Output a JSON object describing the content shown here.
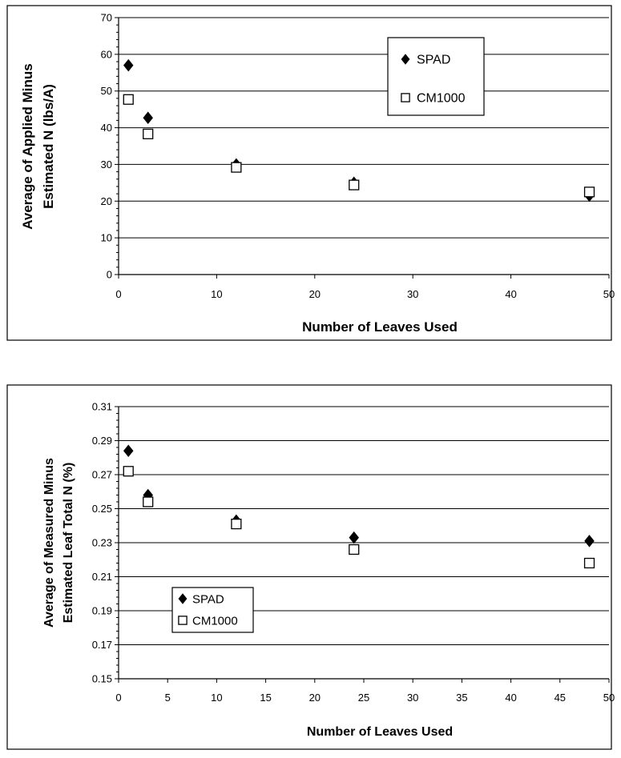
{
  "chart_data": [
    {
      "type": "scatter",
      "title": "",
      "xlabel": "Number of Leaves Used",
      "ylabel_lines": [
        "Average of Applied Minus",
        "Estimated N  (lbs/A)"
      ],
      "xlim": [
        0,
        50
      ],
      "ylim": [
        0,
        70
      ],
      "xticks": [
        0,
        10,
        20,
        30,
        40,
        50
      ],
      "yticks": [
        0,
        10,
        20,
        30,
        40,
        50,
        60,
        70
      ],
      "ytick_decimals": 0,
      "grid": "horizontal",
      "legend_position": "upper-right",
      "series": [
        {
          "name": "SPAD",
          "marker": "filled-diamond",
          "color": "#000000",
          "x": [
            1,
            3,
            12,
            24,
            48
          ],
          "y": [
            57,
            42.7,
            30,
            25,
            21.5
          ]
        },
        {
          "name": "CM1000",
          "marker": "open-square",
          "color": "#000000",
          "x": [
            1,
            3,
            12,
            24,
            48
          ],
          "y": [
            47.7,
            38.3,
            29.2,
            24.4,
            22.5
          ]
        }
      ]
    },
    {
      "type": "scatter",
      "title": "",
      "xlabel": "Number of Leaves Used",
      "ylabel_lines": [
        "Average of Measured Minus",
        "Estimated Leaf Total N (%)"
      ],
      "xlim": [
        0,
        50
      ],
      "ylim": [
        0.15,
        0.31
      ],
      "xticks": [
        0,
        5,
        10,
        15,
        20,
        25,
        30,
        35,
        40,
        45,
        50
      ],
      "yticks": [
        0.15,
        0.17,
        0.19,
        0.21,
        0.23,
        0.25,
        0.27,
        0.29,
        0.31
      ],
      "ytick_decimals": 2,
      "grid": "horizontal",
      "legend_position": "lower-left",
      "series": [
        {
          "name": "SPAD",
          "marker": "filled-diamond",
          "color": "#000000",
          "x": [
            1,
            3,
            12,
            24,
            48
          ],
          "y": [
            0.284,
            0.258,
            0.243,
            0.233,
            0.231
          ]
        },
        {
          "name": "CM1000",
          "marker": "open-square",
          "color": "#000000",
          "x": [
            1,
            3,
            12,
            24,
            48
          ],
          "y": [
            0.272,
            0.254,
            0.241,
            0.226,
            0.218
          ]
        }
      ]
    }
  ]
}
